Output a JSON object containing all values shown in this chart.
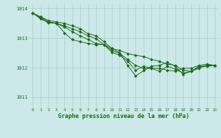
{
  "bg_color": "#cce8e8",
  "grid_color": "#aacccc",
  "line_color": "#1a6b1a",
  "marker_color": "#1a6b1a",
  "xlabel": "Graphe pression niveau de la mer (hPa)",
  "xlabel_fontsize": 6,
  "ytick_labels": [
    1011,
    1012,
    1013,
    1014
  ],
  "xtick_labels": [
    0,
    1,
    2,
    3,
    4,
    5,
    6,
    7,
    8,
    9,
    10,
    11,
    12,
    13,
    14,
    15,
    16,
    17,
    18,
    19,
    20,
    21,
    22,
    23
  ],
  "ylim": [
    1010.65,
    1014.15
  ],
  "xlim": [
    -0.5,
    23.5
  ],
  "series": [
    [
      1013.85,
      1013.72,
      1013.6,
      1013.55,
      1013.5,
      1013.42,
      1013.32,
      1013.15,
      1013.08,
      1012.88,
      1012.65,
      1012.58,
      1012.48,
      1012.42,
      1012.38,
      1012.28,
      1012.22,
      1012.12,
      1012.08,
      1011.92,
      1011.88,
      1012.02,
      1012.08,
      1012.08
    ],
    [
      1013.85,
      1013.68,
      1013.55,
      1013.5,
      1013.42,
      1013.32,
      1013.22,
      1013.08,
      1012.98,
      1012.78,
      1012.52,
      1012.42,
      1012.22,
      1011.92,
      1012.05,
      1011.98,
      1011.98,
      1011.92,
      1011.88,
      1011.98,
      1011.98,
      1012.08,
      1012.12,
      1012.08
    ],
    [
      1013.85,
      1013.65,
      1013.52,
      1013.5,
      1013.18,
      1012.95,
      1012.88,
      1012.82,
      1012.78,
      1012.78,
      1012.65,
      1012.5,
      1012.08,
      1011.72,
      1011.9,
      1012.05,
      1012.08,
      1012.18,
      1012.05,
      1011.78,
      1011.88,
      1011.98,
      1012.08,
      1012.08
    ],
    [
      1013.85,
      1013.7,
      1013.55,
      1013.5,
      1013.38,
      1013.22,
      1013.08,
      1012.95,
      1012.82,
      1012.78,
      1012.58,
      1012.48,
      1012.28,
      1012.08,
      1011.98,
      1011.98,
      1011.88,
      1012.05,
      1011.95,
      1011.82,
      1011.88,
      1012.05,
      1012.05,
      1012.08
    ]
  ]
}
